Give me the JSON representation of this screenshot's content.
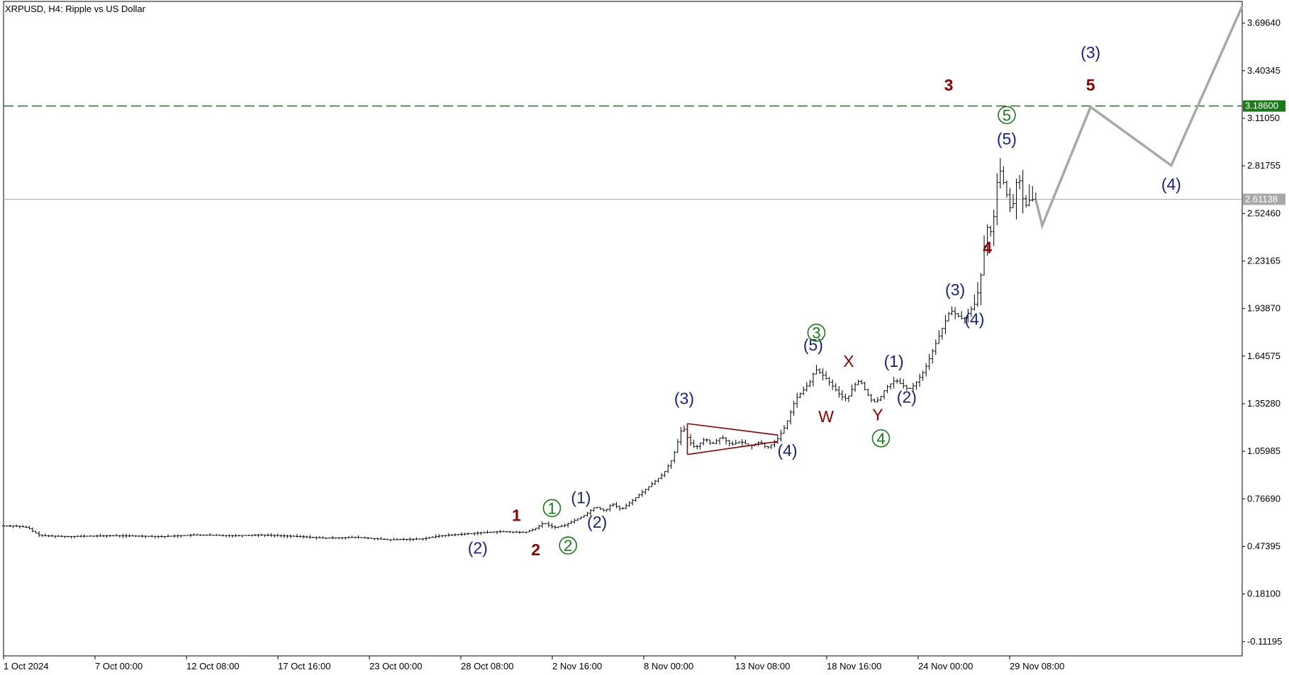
{
  "chart_data": {
    "type": "candlestick",
    "title": "XRPUSD, H4:  Ripple vs US Dollar",
    "y_axis": {
      "ticks": [
        "3.69640",
        "3.40345",
        "3.11050",
        "2.81755",
        "2.52460",
        "2.23165",
        "1.93870",
        "1.64575",
        "1.35280",
        "1.05985",
        "0.76690",
        "0.47395",
        "0.18100",
        "-0.11195"
      ],
      "ylim": [
        -0.2,
        3.83
      ]
    },
    "x_axis": {
      "ticks": [
        "1 Oct 2024",
        "7 Oct 00:00",
        "12 Oct 08:00",
        "17 Oct 16:00",
        "23 Oct 00:00",
        "28 Oct 08:00",
        "2 Nov 16:00",
        "8 Nov 00:00",
        "13 Nov 08:00",
        "18 Nov 16:00",
        "24 Nov 00:00",
        "29 Nov 08:00"
      ]
    },
    "levels": [
      {
        "name": "target",
        "value": 3.186,
        "label": "3.18600",
        "color": "#1a7a1a",
        "style": "dashed"
      },
      {
        "name": "current",
        "value": 2.61138,
        "label": "2.61138",
        "color": "#a8a8a8",
        "style": "solid"
      }
    ],
    "price_path": [
      [
        0,
        0.6
      ],
      [
        4,
        0.6
      ],
      [
        8,
        0.59
      ],
      [
        10,
        0.56
      ],
      [
        12,
        0.54
      ],
      [
        20,
        0.535
      ],
      [
        35,
        0.54
      ],
      [
        50,
        0.535
      ],
      [
        60,
        0.545
      ],
      [
        72,
        0.54
      ],
      [
        80,
        0.545
      ],
      [
        92,
        0.535
      ],
      [
        100,
        0.525
      ],
      [
        110,
        0.53
      ],
      [
        120,
        0.515
      ],
      [
        130,
        0.52
      ],
      [
        136,
        0.54
      ],
      [
        150,
        0.56
      ],
      [
        154,
        0.565
      ],
      [
        162,
        0.56
      ],
      [
        165,
        0.58
      ],
      [
        168,
        0.62
      ],
      [
        171,
        0.59
      ],
      [
        174,
        0.6
      ],
      [
        178,
        0.64
      ],
      [
        181,
        0.67
      ],
      [
        184,
        0.72
      ],
      [
        187,
        0.69
      ],
      [
        189,
        0.74
      ],
      [
        192,
        0.7
      ],
      [
        195,
        0.75
      ],
      [
        198,
        0.8
      ],
      [
        201,
        0.85
      ],
      [
        205,
        0.92
      ],
      [
        208,
        1.02
      ],
      [
        210,
        1.15
      ],
      [
        211,
        1.22
      ],
      [
        213,
        1.12
      ],
      [
        215,
        1.08
      ],
      [
        218,
        1.14
      ],
      [
        220,
        1.1
      ],
      [
        223,
        1.15
      ],
      [
        226,
        1.1
      ],
      [
        229,
        1.12
      ],
      [
        232,
        1.09
      ],
      [
        235,
        1.12
      ],
      [
        237,
        1.08
      ],
      [
        240,
        1.12
      ],
      [
        243,
        1.22
      ],
      [
        246,
        1.38
      ],
      [
        249,
        1.45
      ],
      [
        251,
        1.5
      ],
      [
        252,
        1.57
      ],
      [
        255,
        1.52
      ],
      [
        258,
        1.45
      ],
      [
        260,
        1.4
      ],
      [
        262,
        1.38
      ],
      [
        264,
        1.46
      ],
      [
        266,
        1.5
      ],
      [
        268,
        1.42
      ],
      [
        270,
        1.36
      ],
      [
        272,
        1.38
      ],
      [
        274,
        1.45
      ],
      [
        277,
        1.5
      ],
      [
        279,
        1.47
      ],
      [
        281,
        1.44
      ],
      [
        283,
        1.47
      ],
      [
        286,
        1.56
      ],
      [
        289,
        1.7
      ],
      [
        292,
        1.84
      ],
      [
        294,
        1.93
      ],
      [
        296,
        1.9
      ],
      [
        298,
        1.87
      ],
      [
        300,
        1.92
      ],
      [
        302,
        1.98
      ],
      [
        304,
        2.2
      ],
      [
        305,
        2.45
      ],
      [
        307,
        2.4
      ],
      [
        309,
        2.82
      ],
      [
        311,
        2.68
      ],
      [
        313,
        2.52
      ],
      [
        315,
        2.78
      ],
      [
        317,
        2.56
      ],
      [
        319,
        2.62
      ],
      [
        320,
        2.6
      ]
    ],
    "forecast": [
      {
        "x": 320,
        "y": 2.61
      },
      {
        "x": 322,
        "y": 2.45
      },
      {
        "x": 337,
        "y": 3.18
      },
      {
        "x": 362,
        "y": 2.82
      },
      {
        "x": 384,
        "y": 3.8
      }
    ],
    "annotations": [
      {
        "text": "1",
        "x": 159,
        "y": 0.63,
        "color": "#8b0000",
        "bold": true
      },
      {
        "text": "2",
        "x": 165,
        "y": 0.42,
        "color": "#8b0000",
        "bold": true
      },
      {
        "text": "3",
        "x": 293,
        "y": 3.28,
        "color": "#8b0000",
        "bold": true
      },
      {
        "text": "4",
        "x": 305,
        "y": 2.28,
        "color": "#8b0000",
        "bold": true
      },
      {
        "text": "5",
        "x": 337,
        "y": 3.28,
        "color": "#8b0000",
        "bold": true
      },
      {
        "text": "X",
        "x": 262,
        "y": 1.58,
        "color": "#8b0000",
        "bold": false
      },
      {
        "text": "W",
        "x": 255,
        "y": 1.24,
        "color": "#8b0000",
        "bold": false
      },
      {
        "text": "Y",
        "x": 271,
        "y": 1.25,
        "color": "#8b0000",
        "bold": false
      },
      {
        "text": "(2)",
        "x": 147,
        "y": 0.43,
        "color": "#1a237e",
        "bold": false
      },
      {
        "text": "(1)",
        "x": 179,
        "y": 0.74,
        "color": "#1a237e",
        "bold": false
      },
      {
        "text": "(2)",
        "x": 184,
        "y": 0.59,
        "color": "#1a237e",
        "bold": false
      },
      {
        "text": "(3)",
        "x": 211,
        "y": 1.35,
        "color": "#1a237e",
        "bold": false
      },
      {
        "text": "(4)",
        "x": 243,
        "y": 1.03,
        "color": "#1a237e",
        "bold": false
      },
      {
        "text": "(5)",
        "x": 251,
        "y": 1.68,
        "color": "#1a237e",
        "bold": false
      },
      {
        "text": "(1)",
        "x": 276,
        "y": 1.58,
        "color": "#1a237e",
        "bold": false
      },
      {
        "text": "(2)",
        "x": 280,
        "y": 1.36,
        "color": "#1a237e",
        "bold": false
      },
      {
        "text": "(3)",
        "x": 295,
        "y": 2.02,
        "color": "#1a237e",
        "bold": false
      },
      {
        "text": "(4)",
        "x": 301,
        "y": 1.84,
        "color": "#1a237e",
        "bold": false
      },
      {
        "text": "(5)",
        "x": 311,
        "y": 2.95,
        "color": "#1a237e",
        "bold": false
      },
      {
        "text": "(3)",
        "x": 337,
        "y": 3.48,
        "color": "#1a237e",
        "bold": false
      },
      {
        "text": "(4)",
        "x": 362,
        "y": 2.67,
        "color": "#1a237e",
        "bold": false
      }
    ],
    "circled_annotations": [
      {
        "text": "1",
        "x": 170,
        "y": 0.71,
        "color": "#1a7a1a"
      },
      {
        "text": "2",
        "x": 175,
        "y": 0.48,
        "color": "#1a7a1a"
      },
      {
        "text": "3",
        "x": 252,
        "y": 1.79,
        "color": "#1a7a1a"
      },
      {
        "text": "4",
        "x": 272,
        "y": 1.14,
        "color": "#1a7a1a"
      },
      {
        "text": "5",
        "x": 311,
        "y": 3.13,
        "color": "#1a7a1a"
      }
    ],
    "triangle": {
      "points": [
        [
          212,
          1.23
        ],
        [
          240,
          1.16
        ],
        [
          212,
          1.04
        ],
        [
          240,
          1.12
        ]
      ],
      "color": "#8b0000"
    }
  }
}
